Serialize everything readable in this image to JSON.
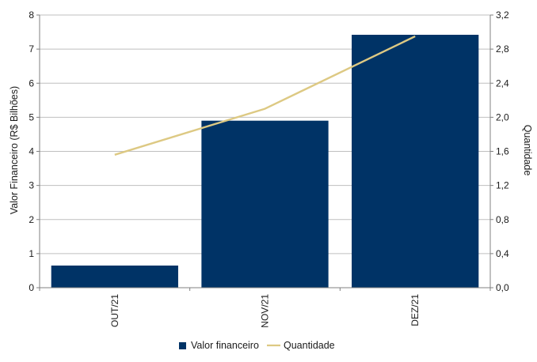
{
  "chart_data": {
    "type": "bar",
    "categories": [
      "OUT/21",
      "NOV/21",
      "DEZ/21"
    ],
    "series": [
      {
        "name": "Valor financeiro",
        "type": "bar",
        "axis": "left",
        "values": [
          0.65,
          4.9,
          7.42
        ],
        "color": "#003366"
      },
      {
        "name": "Quantidade",
        "type": "line",
        "axis": "right",
        "values": [
          1.56,
          2.1,
          2.95
        ],
        "color": "#ddc983"
      }
    ],
    "ylabel": "Valor Financeiro (R$ Bilhões)",
    "y2label": "Quantidade",
    "ylim": [
      0,
      8
    ],
    "y2lim": [
      0,
      3.2
    ],
    "yticks": [
      "0",
      "1",
      "2",
      "3",
      "4",
      "5",
      "6",
      "7",
      "8"
    ],
    "y2ticks": [
      "0,0",
      "0,4",
      "0,8",
      "1,2",
      "1,6",
      "2,0",
      "2,4",
      "2,8",
      "3,2"
    ],
    "grid": true,
    "legend": "bottom"
  }
}
